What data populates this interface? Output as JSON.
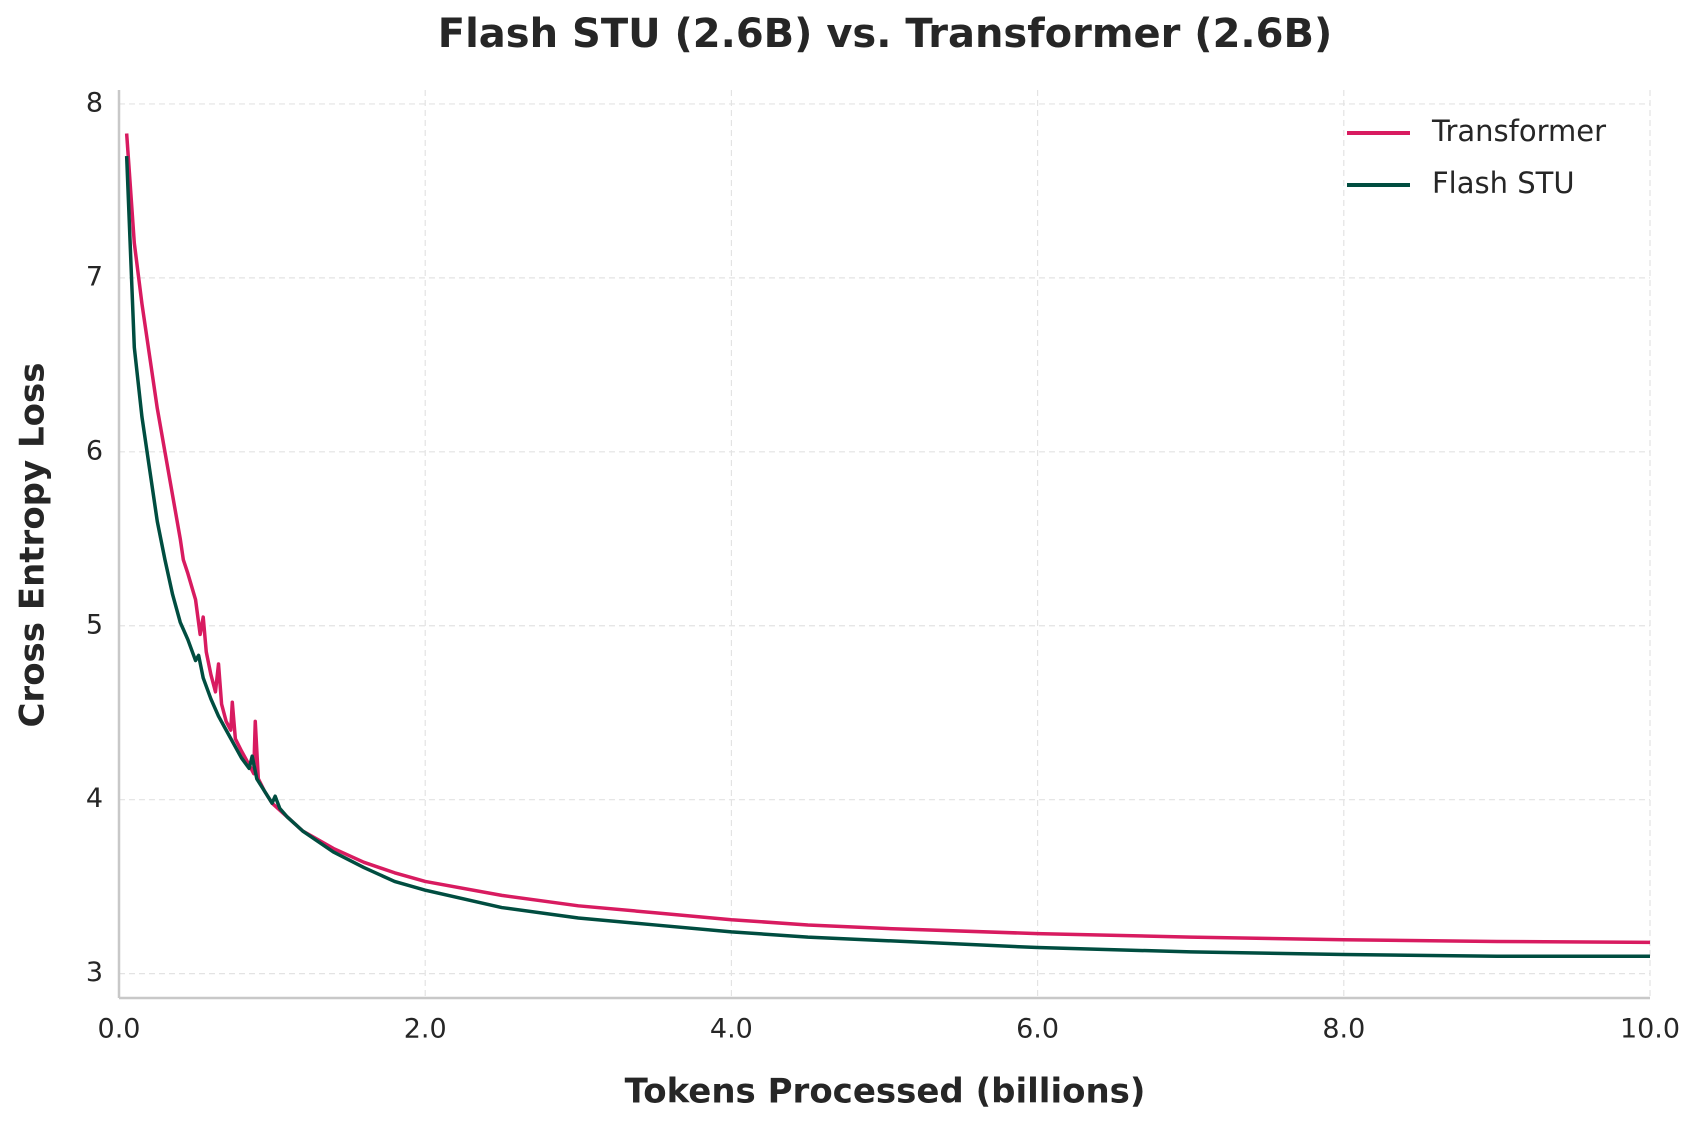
{
  "chart_data": {
    "type": "line",
    "title": "Flash STU (2.6B) vs. Transformer (2.6B)",
    "x_label": "Tokens Processed (billions)",
    "y_label": "Cross Entropy Loss",
    "xlim": [
      0,
      10
    ],
    "ylim": [
      2.86,
      8.08
    ],
    "xticks": [
      {
        "value": 0,
        "label": "0.0"
      },
      {
        "value": 2,
        "label": "2.0"
      },
      {
        "value": 4,
        "label": "4.0"
      },
      {
        "value": 6,
        "label": "6.0"
      },
      {
        "value": 8,
        "label": "8.0"
      },
      {
        "value": 10,
        "label": "10.0"
      }
    ],
    "yticks": [
      3,
      4,
      5,
      6,
      7,
      8
    ],
    "grid": true,
    "legend": "upper right",
    "series": [
      {
        "name": "Transformer",
        "color": "#d81b60",
        "x": [
          0.05,
          0.1,
          0.15,
          0.2,
          0.25,
          0.3,
          0.35,
          0.4,
          0.42,
          0.45,
          0.5,
          0.53,
          0.55,
          0.57,
          0.6,
          0.63,
          0.65,
          0.67,
          0.7,
          0.73,
          0.74,
          0.76,
          0.8,
          0.85,
          0.88,
          0.89,
          0.91,
          0.95,
          1.0,
          1.1,
          1.2,
          1.4,
          1.6,
          1.8,
          2.0,
          2.5,
          3.0,
          3.5,
          4.0,
          4.5,
          5.0,
          6.0,
          7.0,
          8.0,
          9.0,
          10.0
        ],
        "values": [
          7.83,
          7.2,
          6.85,
          6.55,
          6.25,
          6.0,
          5.75,
          5.5,
          5.38,
          5.3,
          5.15,
          4.95,
          5.05,
          4.85,
          4.72,
          4.62,
          4.78,
          4.55,
          4.45,
          4.4,
          4.56,
          4.35,
          4.28,
          4.2,
          4.15,
          4.45,
          4.12,
          4.05,
          3.98,
          3.9,
          3.82,
          3.72,
          3.64,
          3.58,
          3.53,
          3.45,
          3.39,
          3.35,
          3.31,
          3.28,
          3.26,
          3.23,
          3.21,
          3.195,
          3.185,
          3.18
        ]
      },
      {
        "name": "Flash STU",
        "color": "#004d40",
        "x": [
          0.05,
          0.1,
          0.15,
          0.2,
          0.25,
          0.3,
          0.35,
          0.4,
          0.45,
          0.5,
          0.52,
          0.55,
          0.6,
          0.65,
          0.7,
          0.75,
          0.8,
          0.85,
          0.87,
          0.9,
          0.95,
          1.0,
          1.02,
          1.05,
          1.1,
          1.2,
          1.4,
          1.6,
          1.8,
          2.0,
          2.5,
          3.0,
          3.5,
          4.0,
          4.5,
          5.0,
          6.0,
          7.0,
          8.0,
          9.0,
          10.0
        ],
        "values": [
          7.7,
          6.6,
          6.2,
          5.9,
          5.6,
          5.38,
          5.18,
          5.02,
          4.92,
          4.8,
          4.83,
          4.7,
          4.58,
          4.48,
          4.4,
          4.32,
          4.24,
          4.18,
          4.25,
          4.12,
          4.05,
          3.98,
          4.02,
          3.95,
          3.9,
          3.82,
          3.7,
          3.61,
          3.53,
          3.48,
          3.38,
          3.32,
          3.28,
          3.24,
          3.21,
          3.19,
          3.15,
          3.125,
          3.11,
          3.1,
          3.1
        ]
      }
    ]
  }
}
